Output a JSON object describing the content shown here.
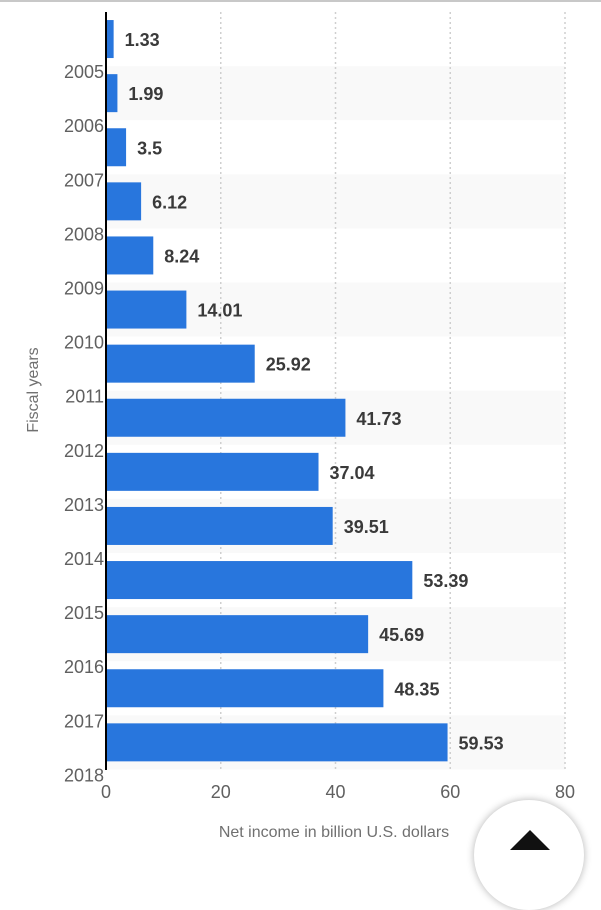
{
  "chart_data": {
    "type": "bar",
    "orientation": "horizontal",
    "categories": [
      "2005",
      "2006",
      "2007",
      "2008",
      "2009",
      "2010",
      "2011",
      "2012",
      "2013",
      "2014",
      "2015",
      "2016",
      "2017",
      "2018"
    ],
    "values": [
      1.33,
      1.99,
      3.5,
      6.12,
      8.24,
      14.01,
      25.92,
      41.73,
      37.04,
      39.51,
      53.39,
      45.69,
      48.35,
      59.53
    ],
    "value_labels": [
      "1.33",
      "1.99",
      "3.5",
      "6.12",
      "8.24",
      "14.01",
      "25.92",
      "41.73",
      "37.04",
      "39.51",
      "53.39",
      "45.69",
      "48.35",
      "59.53"
    ],
    "xlabel": "Net income in billion U.S. dollars",
    "ylabel": "Fiscal years",
    "xlim": [
      0,
      80
    ],
    "xticks": [
      "0",
      "20",
      "40",
      "60",
      "80"
    ],
    "grid": true,
    "bar_color": "#2876dd"
  },
  "ui": {
    "scroll_top_icon": "chevron-up-icon"
  }
}
